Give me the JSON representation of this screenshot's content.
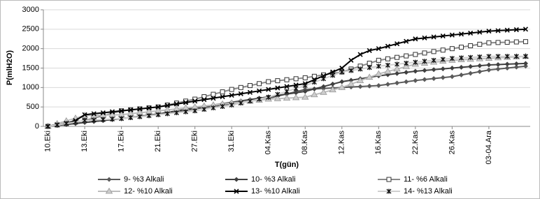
{
  "chart_data": {
    "type": "line",
    "ylabel": "P(mlH2O)",
    "xlabel": "T(gün)",
    "categories": [
      "10.Eki",
      null,
      null,
      null,
      "13.Eki",
      null,
      null,
      null,
      "17.Eki",
      null,
      null,
      null,
      "21.Eki",
      null,
      null,
      null,
      "27.Eki",
      null,
      null,
      null,
      "31.Eki",
      null,
      null,
      null,
      "04.Kas",
      null,
      null,
      null,
      "08.Kas",
      null,
      null,
      null,
      "12.Kas",
      null,
      null,
      null,
      "16.Kas",
      null,
      null,
      null,
      "22.Kas",
      null,
      null,
      null,
      "26.Kas",
      null,
      null,
      null,
      "03-04.Ara",
      null,
      null,
      null,
      null
    ],
    "ylim": [
      0,
      3000
    ],
    "yticks": [
      0,
      500,
      1000,
      1500,
      2000,
      2500,
      3000
    ],
    "grid": true,
    "series": [
      {
        "name": "9- %3 Alkali",
        "color": "#5a5a5a",
        "marker": "diamond",
        "values": [
          0,
          25,
          50,
          75,
          100,
          125,
          150,
          175,
          200,
          225,
          250,
          275,
          300,
          338,
          375,
          413,
          450,
          483,
          515,
          548,
          580,
          615,
          650,
          685,
          720,
          778,
          835,
          893,
          950,
          963,
          975,
          988,
          1000,
          1013,
          1025,
          1038,
          1050,
          1083,
          1115,
          1148,
          1180,
          1205,
          1230,
          1255,
          1280,
          1323,
          1365,
          1408,
          1450,
          1475,
          1500,
          1525,
          1550
        ]
      },
      {
        "name": "10- %3 Alkali",
        "color": "#404040",
        "marker": "diamond",
        "values": [
          0,
          25,
          50,
          75,
          100,
          125,
          150,
          175,
          200,
          230,
          260,
          290,
          320,
          360,
          400,
          440,
          480,
          515,
          550,
          585,
          620,
          655,
          690,
          725,
          760,
          795,
          830,
          865,
          900,
          963,
          1025,
          1088,
          1150,
          1188,
          1225,
          1263,
          1300,
          1330,
          1360,
          1390,
          1420,
          1440,
          1460,
          1480,
          1500,
          1520,
          1540,
          1560,
          1580,
          1590,
          1600,
          1610,
          1620
        ]
      },
      {
        "name": "11- %6 Alkali",
        "color": "#8a8a8a",
        "marker": "square",
        "values": [
          0,
          38,
          75,
          113,
          150,
          213,
          275,
          338,
          400,
          425,
          450,
          475,
          500,
          550,
          600,
          650,
          700,
          763,
          825,
          888,
          950,
          1000,
          1050,
          1100,
          1150,
          1175,
          1200,
          1225,
          1250,
          1288,
          1325,
          1363,
          1400,
          1475,
          1550,
          1625,
          1700,
          1738,
          1775,
          1813,
          1850,
          1888,
          1925,
          1963,
          2000,
          2038,
          2075,
          2113,
          2150,
          2158,
          2165,
          2173,
          2180
        ]
      },
      {
        "name": "12- %10 Alkali",
        "color": "#bdbdbd",
        "marker": "triangle",
        "values": [
          0,
          70,
          140,
          210,
          280,
          285,
          290,
          295,
          300,
          325,
          350,
          375,
          400,
          425,
          450,
          475,
          500,
          525,
          550,
          575,
          600,
          625,
          650,
          675,
          700,
          713,
          725,
          738,
          750,
          813,
          875,
          938,
          1000,
          1088,
          1175,
          1263,
          1350,
          1413,
          1475,
          1538,
          1600,
          1625,
          1650,
          1675,
          1700,
          1713,
          1725,
          1738,
          1750,
          1763,
          1775,
          1788,
          1800
        ]
      },
      {
        "name": "13- %10 Alkali",
        "color": "#000000",
        "marker": "x",
        "values": [
          0,
          40,
          80,
          150,
          300,
          325,
          350,
          375,
          400,
          425,
          450,
          475,
          500,
          538,
          575,
          613,
          650,
          688,
          725,
          763,
          800,
          838,
          875,
          913,
          950,
          988,
          1025,
          1063,
          1100,
          1200,
          1300,
          1400,
          1500,
          1700,
          1850,
          1950,
          2000,
          2063,
          2125,
          2188,
          2250,
          2275,
          2300,
          2325,
          2350,
          2375,
          2400,
          2425,
          2450,
          2463,
          2475,
          2488,
          2500
        ]
      },
      {
        "name": "14- %13 Alkali",
        "color": "#d0d0d0",
        "markercolor": "#111111",
        "marker": "star",
        "values": [
          0,
          38,
          75,
          113,
          150,
          163,
          175,
          188,
          200,
          225,
          250,
          275,
          300,
          325,
          350,
          375,
          400,
          438,
          475,
          513,
          550,
          600,
          650,
          700,
          750,
          825,
          900,
          975,
          1050,
          1138,
          1225,
          1313,
          1400,
          1438,
          1475,
          1513,
          1550,
          1575,
          1600,
          1625,
          1650,
          1675,
          1700,
          1725,
          1750,
          1763,
          1775,
          1788,
          1800,
          1800,
          1800,
          1800,
          1800
        ]
      }
    ]
  }
}
